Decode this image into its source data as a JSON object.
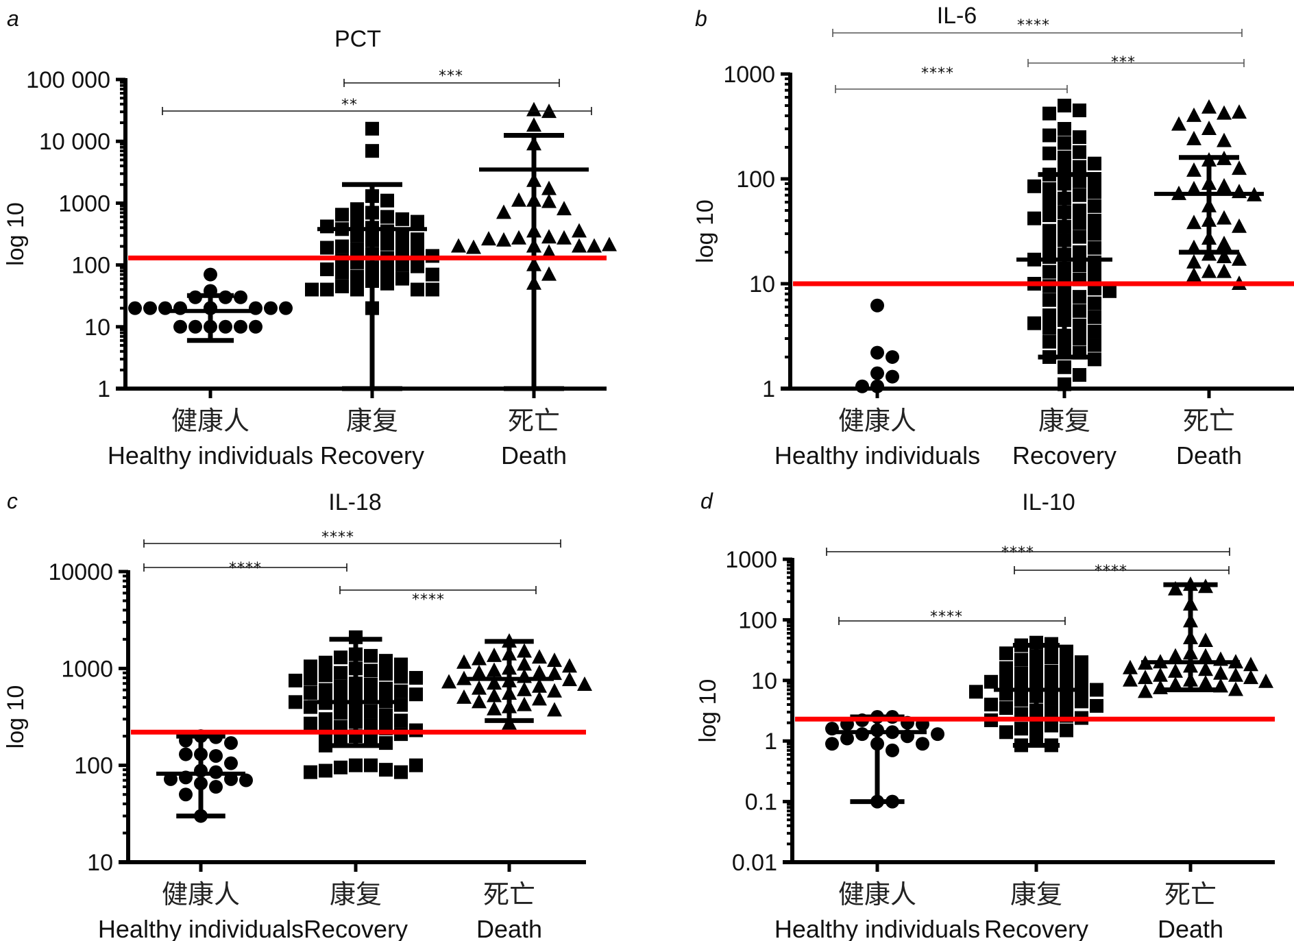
{
  "chart_data": [
    {
      "panel": "a",
      "type": "scatter",
      "title": "PCT",
      "ylabel": "log 10",
      "yscale": "log",
      "ylim": [
        1,
        100000
      ],
      "yticks": [
        1,
        10,
        100,
        1000,
        10000,
        100000
      ],
      "ytick_labels": [
        "1",
        "10",
        "100",
        "1000",
        "10 000",
        "100 000"
      ],
      "categories": [
        {
          "cn": "健康人",
          "en": "Healthy individuals",
          "marker": "circle"
        },
        {
          "cn": "康复",
          "en": "Recovery",
          "marker": "square"
        },
        {
          "cn": "死亡",
          "en": "Death",
          "marker": "triangle"
        }
      ],
      "threshold": 130,
      "threshold_color": "#ff0000",
      "summary": [
        {
          "mid": 18,
          "low": 6,
          "high": 32
        },
        {
          "mid": 380,
          "low": 1,
          "high": 2000
        },
        {
          "mid": 3500,
          "low": 1,
          "high": 12500
        }
      ],
      "points": [
        [
          70,
          38,
          30,
          30,
          30,
          20,
          20,
          20,
          20,
          20,
          20,
          20,
          20,
          20,
          20,
          20,
          20,
          20,
          10,
          10,
          10,
          10,
          10,
          10
        ],
        [
          16000,
          7000,
          1300,
          1100,
          700,
          600,
          500,
          550,
          800,
          650,
          500,
          400,
          420,
          380,
          350,
          300,
          280,
          260,
          250,
          220,
          200,
          190,
          180,
          170,
          160,
          150,
          140,
          130,
          120,
          110,
          100,
          95,
          90,
          85,
          80,
          75,
          70,
          65,
          60,
          55,
          50,
          45,
          40,
          40,
          40,
          40,
          40,
          20
        ],
        [
          32000,
          30000,
          18000,
          9000,
          2300,
          1700,
          1100,
          1100,
          1050,
          800,
          700,
          350,
          280,
          270,
          270,
          250,
          350,
          260,
          200,
          200,
          200,
          190,
          210,
          200,
          160,
          200,
          100,
          70,
          50
        ]
      ],
      "significance": [
        {
          "from": 1,
          "to": 2,
          "label": "***"
        },
        {
          "from": 0,
          "to": 2,
          "label": "**"
        }
      ]
    },
    {
      "panel": "b",
      "type": "scatter",
      "title": "IL-6",
      "ylabel": "log 10",
      "yscale": "log",
      "ylim": [
        1,
        1000
      ],
      "yticks": [
        1,
        10,
        100,
        1000
      ],
      "ytick_labels": [
        "1",
        "10",
        "100",
        "1000"
      ],
      "categories": [
        {
          "cn": "健康人",
          "en": "Healthy individuals",
          "marker": "circle"
        },
        {
          "cn": "康复",
          "en": "Recovery",
          "marker": "square"
        },
        {
          "cn": "死亡",
          "en": "Death",
          "marker": "triangle"
        }
      ],
      "threshold": 10,
      "threshold_color": "#ff0000",
      "summary": [
        null,
        {
          "mid": 17,
          "low": 2,
          "high": 110
        },
        {
          "mid": 72,
          "low": 20,
          "high": 160
        }
      ],
      "points": [
        [
          6.2,
          2.2,
          2.0,
          1.4,
          1.3,
          1.05,
          1.05
        ],
        [
          500,
          450,
          420,
          300,
          250,
          260,
          220,
          180,
          175,
          160,
          140,
          130,
          120,
          110,
          100,
          95,
          90,
          85,
          80,
          75,
          70,
          65,
          60,
          55,
          50,
          48,
          45,
          42,
          40,
          38,
          35,
          32,
          30,
          28,
          26,
          24,
          22,
          20,
          19,
          18,
          17,
          16,
          15,
          14,
          13,
          12,
          11,
          10.5,
          10,
          9.5,
          9,
          8.5,
          8,
          7.5,
          7,
          6.5,
          6,
          5.5,
          5,
          4.8,
          4.5,
          4.2,
          4,
          3.8,
          3.5,
          3.2,
          3,
          2.8,
          2.6,
          2.4,
          2.2,
          2,
          1.9,
          1.6,
          1.35,
          1.1
        ],
        [
          480,
          420,
          400,
          430,
          300,
          330,
          230,
          240,
          150,
          155,
          120,
          125,
          90,
          85,
          80,
          75,
          72,
          70,
          55,
          42,
          40,
          38,
          35,
          27,
          24,
          22,
          19,
          18,
          17,
          16,
          13,
          13,
          12,
          10
        ]
      ],
      "significance": [
        {
          "from": 0,
          "to": 2,
          "label": "****"
        },
        {
          "from": 1,
          "to": 2,
          "label": "***"
        },
        {
          "from": 0,
          "to": 1,
          "label": "****"
        }
      ]
    },
    {
      "panel": "c",
      "type": "scatter",
      "title": "IL-18",
      "ylabel": "log 10",
      "yscale": "log",
      "ylim": [
        10,
        10000
      ],
      "yticks": [
        10,
        100,
        1000,
        10000
      ],
      "ytick_labels": [
        "10",
        "100",
        "1000",
        "10000"
      ],
      "categories": [
        {
          "cn": "健康人",
          "en": "Healthy individuals",
          "marker": "circle"
        },
        {
          "cn": "康复",
          "en": "Recovery",
          "marker": "square"
        },
        {
          "cn": "死亡",
          "en": "Death",
          "marker": "triangle"
        }
      ],
      "threshold": 220,
      "threshold_color": "#ff0000",
      "summary": [
        {
          "mid": 82,
          "low": 30,
          "high": 200
        },
        {
          "mid": 450,
          "low": 160,
          "high": 2000
        },
        {
          "mid": 780,
          "low": 290,
          "high": 1900
        }
      ],
      "points": [
        [
          200,
          195,
          180,
          170,
          130,
          125,
          130,
          105,
          88,
          85,
          75,
          72,
          72,
          70,
          65,
          60,
          50,
          30
        ],
        [
          2100,
          1400,
          1350,
          1300,
          1200,
          1150,
          1100,
          1050,
          1000,
          950,
          900,
          880,
          850,
          820,
          800,
          780,
          750,
          700,
          680,
          650,
          620,
          600,
          580,
          560,
          540,
          520,
          500,
          480,
          460,
          450,
          440,
          420,
          400,
          380,
          360,
          350,
          330,
          300,
          290,
          280,
          270,
          260,
          250,
          240,
          230,
          220,
          210,
          200,
          190,
          180,
          170,
          160,
          100,
          100,
          95,
          90,
          88,
          85,
          85,
          100
        ],
        [
          1900,
          1500,
          1400,
          1350,
          1300,
          1250,
          1200,
          1150,
          1100,
          1050,
          1000,
          950,
          900,
          900,
          880,
          820,
          780,
          760,
          740,
          720,
          700,
          680,
          650,
          620,
          600,
          580,
          550,
          520,
          500,
          480,
          450,
          420,
          400,
          380,
          370,
          270
        ]
      ],
      "significance": [
        {
          "from": 0,
          "to": 2,
          "label": "****"
        },
        {
          "from": 0,
          "to": 1,
          "label": "****"
        },
        {
          "from": 1,
          "to": 2,
          "label": "****"
        }
      ]
    },
    {
      "panel": "d",
      "type": "scatter",
      "title": "IL-10",
      "ylabel": "log 10",
      "yscale": "log",
      "ylim": [
        0.01,
        1000
      ],
      "yticks": [
        0.01,
        0.1,
        1,
        10,
        100,
        1000
      ],
      "ytick_labels": [
        "0.01",
        "0.1",
        "1",
        "10",
        "100",
        "1000"
      ],
      "categories": [
        {
          "cn": "健康人",
          "en": "Healthy individuals",
          "marker": "circle"
        },
        {
          "cn": "康复",
          "en": "Recovery",
          "marker": "square"
        },
        {
          "cn": "死亡",
          "en": "Death",
          "marker": "triangle"
        }
      ],
      "threshold": 2.3,
      "threshold_color": "#ff0000",
      "summary": [
        {
          "mid": 1.4,
          "low": 0.1,
          "high": 2.5
        },
        {
          "mid": 7,
          "low": 0.85,
          "high": 38
        },
        {
          "mid": 20,
          "low": 7,
          "high": 380
        }
      ],
      "points": [
        [
          2.5,
          2.5,
          2.2,
          2.0,
          1.9,
          1.9,
          1.6,
          1.5,
          1.4,
          1.3,
          1.3,
          1.2,
          1.1,
          0.9,
          0.9,
          0.9,
          0.7,
          0.1,
          0.1
        ],
        [
          42,
          40,
          38,
          30,
          28,
          25,
          24,
          22,
          20,
          18,
          16,
          15,
          14,
          13,
          12,
          11,
          10,
          9.5,
          9,
          8.5,
          8,
          7.5,
          7,
          6.8,
          6.5,
          6,
          5.5,
          5,
          4.8,
          4.5,
          4.2,
          4,
          3.8,
          3.5,
          3.2,
          3,
          2.8,
          2.6,
          2.4,
          2.2,
          2,
          1.8,
          1.6,
          1.5,
          1.4,
          1.2,
          0.85,
          0.85
        ],
        [
          380,
          350,
          320,
          180,
          95,
          50,
          45,
          28,
          25,
          25,
          22,
          20,
          20,
          19,
          18,
          17,
          16,
          15,
          14,
          13,
          12,
          12,
          11,
          11,
          10,
          10,
          9.5,
          9,
          8.5,
          8,
          7.5,
          7,
          6.5
        ]
      ],
      "significance": [
        {
          "from": 0,
          "to": 2,
          "label": "****"
        },
        {
          "from": 1,
          "to": 2,
          "label": "****"
        },
        {
          "from": 0,
          "to": 1,
          "label": "****"
        }
      ]
    }
  ]
}
